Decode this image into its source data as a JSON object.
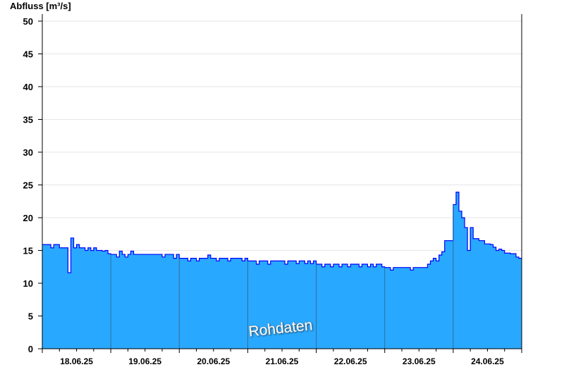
{
  "chart_data": {
    "type": "area",
    "ylabel": "Abfluss [m³/s]",
    "ylim": [
      0,
      50
    ],
    "yticks": [
      0,
      5,
      10,
      15,
      20,
      25,
      30,
      35,
      40,
      45,
      50
    ],
    "x_start": "18.06.25 00:00",
    "x_end": "25.06.25 00:00",
    "x_step_hours": 1,
    "xtick_labels": [
      "18.06.25",
      "19.06.25",
      "20.06.25",
      "21.06.25",
      "22.06.25",
      "23.06.25",
      "24.06.25"
    ],
    "grid": true,
    "watermark": "Rohdaten",
    "colors": {
      "fill": "#29a8ff",
      "line": "#0000ff",
      "day_separator": "#2f6f96",
      "grid": "#e6e6e6"
    },
    "values": [
      15.9,
      15.9,
      15.9,
      15.4,
      15.9,
      15.9,
      15.4,
      15.4,
      15.4,
      11.6,
      16.9,
      15.4,
      15.9,
      15.4,
      15.4,
      15.0,
      15.4,
      15.0,
      15.4,
      15.0,
      15.0,
      14.9,
      15.0,
      14.5,
      14.4,
      14.4,
      14.0,
      14.9,
      14.4,
      14.0,
      14.4,
      14.9,
      14.4,
      14.4,
      14.4,
      14.4,
      14.4,
      14.4,
      14.4,
      14.4,
      14.4,
      14.4,
      14.0,
      14.4,
      14.4,
      14.4,
      13.8,
      14.4,
      13.8,
      13.8,
      13.8,
      13.4,
      13.8,
      13.8,
      13.4,
      13.8,
      13.8,
      13.8,
      14.3,
      13.8,
      13.8,
      13.4,
      13.8,
      13.8,
      13.8,
      13.4,
      13.8,
      13.8,
      13.8,
      13.8,
      13.4,
      13.8,
      13.4,
      13.4,
      13.4,
      12.9,
      13.4,
      13.4,
      13.4,
      12.9,
      13.4,
      13.4,
      13.4,
      13.4,
      13.4,
      12.9,
      13.4,
      13.4,
      13.4,
      13.0,
      13.4,
      13.4,
      13.0,
      13.4,
      13.0,
      13.4,
      12.9,
      12.9,
      12.5,
      12.9,
      12.9,
      12.5,
      12.9,
      12.9,
      12.5,
      12.9,
      12.9,
      12.5,
      12.9,
      12.9,
      12.9,
      12.5,
      12.9,
      12.9,
      12.5,
      12.9,
      12.5,
      12.9,
      12.9,
      12.5,
      12.4,
      12.4,
      12.0,
      12.4,
      12.4,
      12.4,
      12.4,
      12.4,
      12.4,
      12.0,
      12.4,
      12.4,
      12.4,
      12.4,
      12.4,
      12.9,
      13.4,
      13.8,
      13.4,
      14.3,
      14.8,
      16.5,
      16.5,
      16.5,
      22.0,
      23.9,
      21.0,
      20.0,
      18.5,
      15.0,
      18.5,
      16.8,
      16.8,
      16.5,
      16.5,
      16.0,
      16.0,
      15.9,
      15.5,
      15.0,
      15.2,
      15.0,
      14.6,
      14.6,
      14.5,
      14.5,
      14.0,
      13.8,
      13.8
    ]
  }
}
